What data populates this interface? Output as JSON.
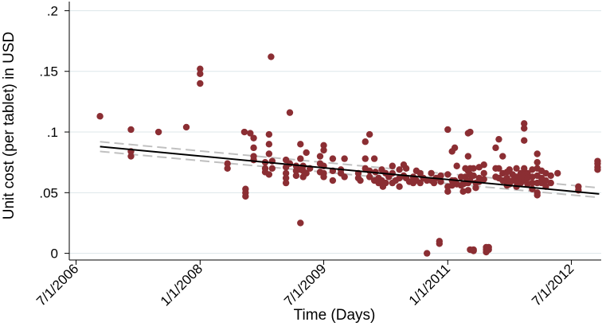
{
  "chart_data": {
    "type": "scatter",
    "xlabel": "Time (Days)",
    "ylabel": "Unit cost (per tablet) in USD",
    "x_tick_labels": [
      "7/1/2006",
      "1/1/2008",
      "7/1/2009",
      "1/1/2011",
      "7/1/2012"
    ],
    "x_tick_dates": [
      "2006-07-01",
      "2008-01-01",
      "2009-07-01",
      "2011-01-01",
      "2012-07-01"
    ],
    "y_tick_labels": [
      ".2",
      ".15",
      ".1",
      ".05",
      "0"
    ],
    "y_tick_values": [
      0.2,
      0.15,
      0.1,
      0.05,
      0
    ],
    "xlim": [
      "2006-06-01",
      "2012-11-10"
    ],
    "ylim": [
      -0.0055,
      0.2075
    ],
    "grid": "horizontal",
    "colors": {
      "points": "#8b2e33",
      "fit_line": "#000000",
      "ci_lines": "#c0c0c0",
      "grid": "#dde7ea"
    },
    "fit_line": {
      "x": [
        "2006-10-15",
        "2012-11-01"
      ],
      "y": [
        0.088,
        0.049
      ]
    },
    "ci_upper": {
      "x": [
        "2006-10-15",
        "2012-11-01"
      ],
      "y": [
        0.092,
        0.054
      ]
    },
    "ci_lower": {
      "x": [
        "2006-10-15",
        "2012-11-01"
      ],
      "y": [
        0.084,
        0.046
      ]
    },
    "points": [
      {
        "x": "2006-10-15",
        "y": 0.113
      },
      {
        "x": "2007-03-01",
        "y": 0.102
      },
      {
        "x": "2007-03-01",
        "y": 0.084
      },
      {
        "x": "2007-03-01",
        "y": 0.08
      },
      {
        "x": "2007-07-01",
        "y": 0.1
      },
      {
        "x": "2007-11-01",
        "y": 0.104
      },
      {
        "x": "2008-01-01",
        "y": 0.152
      },
      {
        "x": "2008-01-01",
        "y": 0.148
      },
      {
        "x": "2008-01-01",
        "y": 0.14
      },
      {
        "x": "2008-05-01",
        "y": 0.074
      },
      {
        "x": "2008-05-01",
        "y": 0.07
      },
      {
        "x": "2008-07-15",
        "y": 0.1
      },
      {
        "x": "2008-07-20",
        "y": 0.053
      },
      {
        "x": "2008-07-20",
        "y": 0.05
      },
      {
        "x": "2008-07-20",
        "y": 0.047
      },
      {
        "x": "2008-08-10",
        "y": 0.099
      },
      {
        "x": "2008-08-25",
        "y": 0.095
      },
      {
        "x": "2008-08-25",
        "y": 0.087
      },
      {
        "x": "2008-08-25",
        "y": 0.08
      },
      {
        "x": "2008-08-25",
        "y": 0.077
      },
      {
        "x": "2008-10-15",
        "y": 0.075
      },
      {
        "x": "2008-10-15",
        "y": 0.07
      },
      {
        "x": "2008-10-15",
        "y": 0.067
      },
      {
        "x": "2008-11-01",
        "y": 0.098
      },
      {
        "x": "2008-11-01",
        "y": 0.09
      },
      {
        "x": "2008-11-01",
        "y": 0.082
      },
      {
        "x": "2008-11-01",
        "y": 0.065
      },
      {
        "x": "2008-11-10",
        "y": 0.162
      },
      {
        "x": "2008-11-15",
        "y": 0.076
      },
      {
        "x": "2008-11-15",
        "y": 0.07
      },
      {
        "x": "2009-01-15",
        "y": 0.077
      },
      {
        "x": "2009-01-15",
        "y": 0.071
      },
      {
        "x": "2009-01-15",
        "y": 0.066
      },
      {
        "x": "2009-01-15",
        "y": 0.062
      },
      {
        "x": "2009-01-15",
        "y": 0.058
      },
      {
        "x": "2009-02-01",
        "y": 0.116
      },
      {
        "x": "2009-02-01",
        "y": 0.074
      },
      {
        "x": "2009-03-01",
        "y": 0.072
      },
      {
        "x": "2009-03-01",
        "y": 0.068
      },
      {
        "x": "2009-03-01",
        "y": 0.064
      },
      {
        "x": "2009-03-20",
        "y": 0.09
      },
      {
        "x": "2009-03-20",
        "y": 0.078
      },
      {
        "x": "2009-03-20",
        "y": 0.069
      },
      {
        "x": "2009-03-20",
        "y": 0.025
      },
      {
        "x": "2009-04-01",
        "y": 0.072
      },
      {
        "x": "2009-04-01",
        "y": 0.068
      },
      {
        "x": "2009-04-01",
        "y": 0.063
      },
      {
        "x": "2009-04-15",
        "y": 0.083
      },
      {
        "x": "2009-04-15",
        "y": 0.066
      },
      {
        "x": "2009-05-01",
        "y": 0.07
      },
      {
        "x": "2009-06-15",
        "y": 0.08
      },
      {
        "x": "2009-06-15",
        "y": 0.074
      },
      {
        "x": "2009-06-15",
        "y": 0.067
      },
      {
        "x": "2009-07-01",
        "y": 0.089
      },
      {
        "x": "2009-07-01",
        "y": 0.085
      },
      {
        "x": "2009-07-01",
        "y": 0.072
      },
      {
        "x": "2009-07-01",
        "y": 0.066
      },
      {
        "x": "2009-07-01",
        "y": 0.063
      },
      {
        "x": "2009-08-10",
        "y": 0.078
      },
      {
        "x": "2009-08-10",
        "y": 0.068
      },
      {
        "x": "2009-08-10",
        "y": 0.06
      },
      {
        "x": "2009-09-15",
        "y": 0.069
      },
      {
        "x": "2009-09-15",
        "y": 0.066
      },
      {
        "x": "2009-10-01",
        "y": 0.078
      },
      {
        "x": "2009-10-01",
        "y": 0.063
      },
      {
        "x": "2009-12-01",
        "y": 0.066
      },
      {
        "x": "2009-12-01",
        "y": 0.062
      },
      {
        "x": "2009-12-10",
        "y": 0.06
      },
      {
        "x": "2010-01-01",
        "y": 0.092
      },
      {
        "x": "2010-01-01",
        "y": 0.078
      },
      {
        "x": "2010-01-01",
        "y": 0.07
      },
      {
        "x": "2010-01-20",
        "y": 0.098
      },
      {
        "x": "2010-01-20",
        "y": 0.068
      },
      {
        "x": "2010-01-20",
        "y": 0.063
      },
      {
        "x": "2010-02-10",
        "y": 0.078
      },
      {
        "x": "2010-02-10",
        "y": 0.06
      },
      {
        "x": "2010-02-15",
        "y": 0.067
      },
      {
        "x": "2010-03-01",
        "y": 0.062
      },
      {
        "x": "2010-03-01",
        "y": 0.058
      },
      {
        "x": "2010-03-15",
        "y": 0.069
      },
      {
        "x": "2010-03-15",
        "y": 0.06
      },
      {
        "x": "2010-03-20",
        "y": 0.055
      },
      {
        "x": "2010-04-01",
        "y": 0.066
      },
      {
        "x": "2010-04-01",
        "y": 0.058
      },
      {
        "x": "2010-04-15",
        "y": 0.063
      },
      {
        "x": "2010-05-01",
        "y": 0.072
      },
      {
        "x": "2010-05-01",
        "y": 0.066
      },
      {
        "x": "2010-05-01",
        "y": 0.058
      },
      {
        "x": "2010-05-15",
        "y": 0.06
      },
      {
        "x": "2010-06-01",
        "y": 0.069
      },
      {
        "x": "2010-06-01",
        "y": 0.062
      },
      {
        "x": "2010-06-01",
        "y": 0.055
      },
      {
        "x": "2010-06-20",
        "y": 0.073
      },
      {
        "x": "2010-06-20",
        "y": 0.064
      },
      {
        "x": "2010-07-01",
        "y": 0.07
      },
      {
        "x": "2010-07-01",
        "y": 0.062
      },
      {
        "x": "2010-07-15",
        "y": 0.059
      },
      {
        "x": "2010-08-01",
        "y": 0.063
      },
      {
        "x": "2010-08-01",
        "y": 0.058
      },
      {
        "x": "2010-08-15",
        "y": 0.068
      },
      {
        "x": "2010-08-15",
        "y": 0.06
      },
      {
        "x": "2010-09-01",
        "y": 0.066
      },
      {
        "x": "2010-09-01",
        "y": 0.058
      },
      {
        "x": "2010-09-15",
        "y": 0.062
      },
      {
        "x": "2010-10-01",
        "y": 0.06
      },
      {
        "x": "2010-10-01",
        "y": 0.0
      },
      {
        "x": "2010-10-20",
        "y": 0.066
      },
      {
        "x": "2010-10-20",
        "y": 0.06
      },
      {
        "x": "2010-11-01",
        "y": 0.058
      },
      {
        "x": "2010-11-10",
        "y": 0.062
      },
      {
        "x": "2010-11-25",
        "y": 0.01
      },
      {
        "x": "2010-11-25",
        "y": 0.008
      },
      {
        "x": "2010-12-01",
        "y": 0.064
      },
      {
        "x": "2010-12-01",
        "y": 0.059
      },
      {
        "x": "2011-01-01",
        "y": 0.102
      },
      {
        "x": "2011-01-01",
        "y": 0.065
      },
      {
        "x": "2011-01-01",
        "y": 0.055
      },
      {
        "x": "2011-01-01",
        "y": 0.051
      },
      {
        "x": "2011-01-20",
        "y": 0.084
      },
      {
        "x": "2011-01-20",
        "y": 0.06
      },
      {
        "x": "2011-01-20",
        "y": 0.056
      },
      {
        "x": "2011-02-01",
        "y": 0.087
      },
      {
        "x": "2011-02-01",
        "y": 0.06
      },
      {
        "x": "2011-02-10",
        "y": 0.072
      },
      {
        "x": "2011-02-10",
        "y": 0.057
      },
      {
        "x": "2011-03-01",
        "y": 0.063
      },
      {
        "x": "2011-03-01",
        "y": 0.056
      },
      {
        "x": "2011-03-10",
        "y": 0.057
      },
      {
        "x": "2011-03-10",
        "y": 0.051
      },
      {
        "x": "2011-03-20",
        "y": 0.07
      },
      {
        "x": "2011-03-20",
        "y": 0.063
      },
      {
        "x": "2011-03-20",
        "y": 0.058
      },
      {
        "x": "2011-04-01",
        "y": 0.099
      },
      {
        "x": "2011-04-01",
        "y": 0.08
      },
      {
        "x": "2011-04-01",
        "y": 0.068
      },
      {
        "x": "2011-04-01",
        "y": 0.058
      },
      {
        "x": "2011-04-01",
        "y": 0.052
      },
      {
        "x": "2011-04-10",
        "y": 0.1
      },
      {
        "x": "2011-04-10",
        "y": 0.07
      },
      {
        "x": "2011-04-10",
        "y": 0.065
      },
      {
        "x": "2011-04-10",
        "y": 0.06
      },
      {
        "x": "2011-04-10",
        "y": 0.003
      },
      {
        "x": "2011-04-25",
        "y": 0.07
      },
      {
        "x": "2011-04-25",
        "y": 0.064
      },
      {
        "x": "2011-04-25",
        "y": 0.003
      },
      {
        "x": "2011-04-25",
        "y": 0.002
      },
      {
        "x": "2011-05-05",
        "y": 0.058
      },
      {
        "x": "2011-05-05",
        "y": 0.054
      },
      {
        "x": "2011-05-20",
        "y": 0.071
      },
      {
        "x": "2011-05-20",
        "y": 0.062
      },
      {
        "x": "2011-05-20",
        "y": 0.059
      },
      {
        "x": "2011-06-10",
        "y": 0.073
      },
      {
        "x": "2011-06-10",
        "y": 0.066
      },
      {
        "x": "2011-06-10",
        "y": 0.061
      },
      {
        "x": "2011-06-20",
        "y": 0.005
      },
      {
        "x": "2011-06-20",
        "y": 0.003
      },
      {
        "x": "2011-06-20",
        "y": 0.001
      },
      {
        "x": "2011-07-01",
        "y": 0.005
      },
      {
        "x": "2011-07-01",
        "y": 0.003
      },
      {
        "x": "2011-08-01",
        "y": 0.087
      },
      {
        "x": "2011-08-01",
        "y": 0.07
      },
      {
        "x": "2011-08-01",
        "y": 0.063
      },
      {
        "x": "2011-08-15",
        "y": 0.094
      },
      {
        "x": "2011-08-15",
        "y": 0.07
      },
      {
        "x": "2011-08-15",
        "y": 0.062
      },
      {
        "x": "2011-09-01",
        "y": 0.08
      },
      {
        "x": "2011-09-01",
        "y": 0.066
      },
      {
        "x": "2011-09-01",
        "y": 0.06
      },
      {
        "x": "2011-09-20",
        "y": 0.067
      },
      {
        "x": "2011-09-20",
        "y": 0.062
      },
      {
        "x": "2011-09-20",
        "y": 0.058
      },
      {
        "x": "2011-09-20",
        "y": 0.056
      },
      {
        "x": "2011-10-01",
        "y": 0.069
      },
      {
        "x": "2011-10-01",
        "y": 0.057
      },
      {
        "x": "2011-10-15",
        "y": 0.065
      },
      {
        "x": "2011-10-15",
        "y": 0.06
      },
      {
        "x": "2011-11-01",
        "y": 0.07
      },
      {
        "x": "2011-11-01",
        "y": 0.063
      },
      {
        "x": "2011-11-01",
        "y": 0.059
      },
      {
        "x": "2011-11-01",
        "y": 0.055
      },
      {
        "x": "2011-11-20",
        "y": 0.066
      },
      {
        "x": "2011-11-20",
        "y": 0.062
      },
      {
        "x": "2011-11-20",
        "y": 0.058
      },
      {
        "x": "2011-12-05",
        "y": 0.107
      },
      {
        "x": "2011-12-05",
        "y": 0.103
      },
      {
        "x": "2011-12-05",
        "y": 0.093
      },
      {
        "x": "2011-12-05",
        "y": 0.07
      },
      {
        "x": "2011-12-05",
        "y": 0.065
      },
      {
        "x": "2011-12-05",
        "y": 0.06
      },
      {
        "x": "2011-12-20",
        "y": 0.066
      },
      {
        "x": "2011-12-20",
        "y": 0.062
      },
      {
        "x": "2011-12-20",
        "y": 0.057
      },
      {
        "x": "2012-01-10",
        "y": 0.069
      },
      {
        "x": "2012-01-10",
        "y": 0.063
      },
      {
        "x": "2012-01-10",
        "y": 0.058
      },
      {
        "x": "2012-01-10",
        "y": 0.053
      },
      {
        "x": "2012-02-01",
        "y": 0.082
      },
      {
        "x": "2012-02-01",
        "y": 0.075
      },
      {
        "x": "2012-02-01",
        "y": 0.07
      },
      {
        "x": "2012-02-01",
        "y": 0.064
      },
      {
        "x": "2012-02-01",
        "y": 0.058
      },
      {
        "x": "2012-02-01",
        "y": 0.05
      },
      {
        "x": "2012-02-01",
        "y": 0.048
      },
      {
        "x": "2012-02-20",
        "y": 0.068
      },
      {
        "x": "2012-02-20",
        "y": 0.062
      },
      {
        "x": "2012-02-20",
        "y": 0.058
      },
      {
        "x": "2012-03-10",
        "y": 0.066
      },
      {
        "x": "2012-03-10",
        "y": 0.06
      },
      {
        "x": "2012-03-10",
        "y": 0.055
      },
      {
        "x": "2012-04-01",
        "y": 0.064
      },
      {
        "x": "2012-04-01",
        "y": 0.058
      },
      {
        "x": "2012-05-01",
        "y": 0.066
      },
      {
        "x": "2012-08-01",
        "y": 0.055
      },
      {
        "x": "2012-08-01",
        "y": 0.052
      },
      {
        "x": "2012-10-25",
        "y": 0.076
      },
      {
        "x": "2012-10-25",
        "y": 0.074
      },
      {
        "x": "2012-10-25",
        "y": 0.071
      },
      {
        "x": "2012-10-25",
        "y": 0.069
      }
    ]
  }
}
